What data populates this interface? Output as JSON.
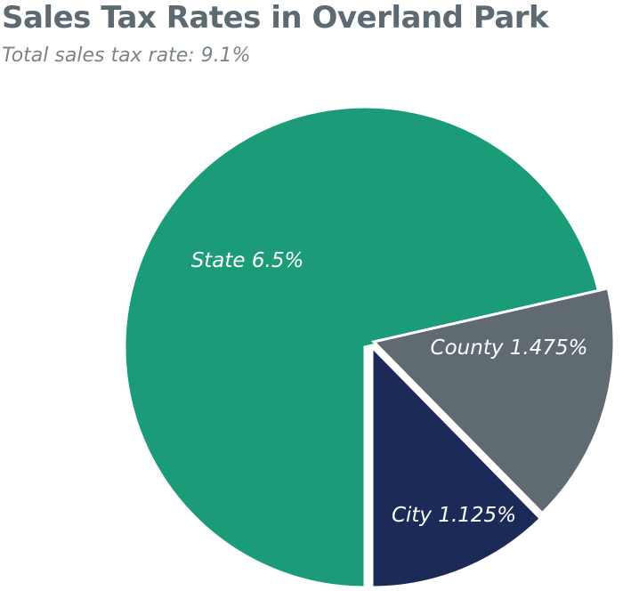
{
  "chart_data": {
    "type": "pie",
    "title": "Sales Tax Rates in Overland Park",
    "subtitle": "Total sales tax rate: 9.1%",
    "slices": [
      {
        "name": "State",
        "value": 6.5,
        "label": "State 6.5%",
        "color": "#1b9b78"
      },
      {
        "name": "County",
        "value": 1.475,
        "label": "County 1.475%",
        "color": "#5f6a71"
      },
      {
        "name": "City",
        "value": 1.125,
        "label": "City 1.125%",
        "color": "#1c2a58"
      }
    ],
    "exploded_slices": [
      "County",
      "City"
    ]
  }
}
